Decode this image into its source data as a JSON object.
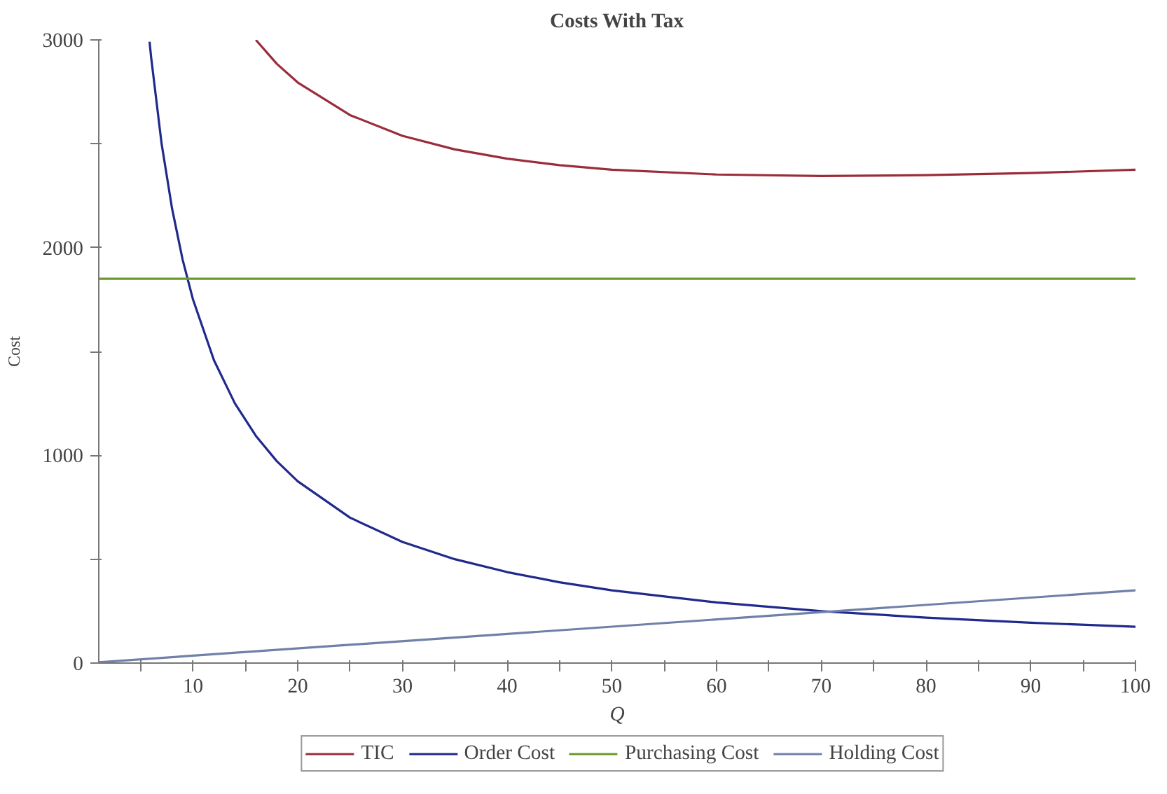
{
  "chart_data": {
    "type": "line",
    "title": "Costs With Tax",
    "xlabel": "Q",
    "ylabel": "Cost",
    "series": [
      {
        "name": "TIC",
        "color": "#9b2d3a",
        "x": [
          16,
          18,
          20,
          25,
          30,
          35,
          40,
          45,
          50,
          60,
          70,
          80,
          90,
          100
        ],
        "values": [
          3000,
          2885,
          2795,
          2638,
          2538,
          2473,
          2428,
          2397,
          2375,
          2352,
          2345,
          2349,
          2359,
          2375
        ]
      },
      {
        "name": "Order Cost",
        "color": "#1f2a8c",
        "x": [
          5.85,
          6,
          7,
          8,
          9,
          10,
          12,
          14,
          16,
          18,
          20,
          25,
          30,
          35,
          40,
          45,
          50,
          60,
          70,
          80,
          90,
          100
        ],
        "values": [
          2991,
          2917,
          2500,
          2188,
          1944,
          1750,
          1458,
          1250,
          1094,
          972,
          875,
          700,
          583,
          500,
          438,
          389,
          350,
          292,
          250,
          219,
          194,
          175
        ]
      },
      {
        "name": "Purchasing Cost",
        "color": "#6a9a2a",
        "x": [
          1,
          100
        ],
        "values": [
          1850,
          1850
        ]
      },
      {
        "name": "Holding Cost",
        "color": "#7080a8",
        "x": [
          1,
          100
        ],
        "values": [
          4,
          350
        ]
      }
    ],
    "xlim": [
      1,
      100
    ],
    "ylim": [
      0,
      3000
    ],
    "xticks": [
      {
        "value": 5,
        "label": null
      },
      10,
      {
        "value": 15,
        "label": null
      },
      20,
      {
        "value": 25,
        "label": null
      },
      30,
      {
        "value": 35,
        "label": null
      },
      40,
      {
        "value": 45,
        "label": null
      },
      50,
      {
        "value": 55,
        "label": null
      },
      60,
      {
        "value": 65,
        "label": null
      },
      70,
      {
        "value": 75,
        "label": null
      },
      80,
      {
        "value": 85,
        "label": null
      },
      90,
      {
        "value": 95,
        "label": null
      },
      100
    ],
    "yticks": [
      0,
      {
        "value": 500,
        "label": null
      },
      1000,
      {
        "value": 1500,
        "label": null
      },
      2000,
      {
        "value": 2500,
        "label": null
      },
      3000
    ],
    "grid": false,
    "legend": "bottom",
    "marker": "none",
    "line_style": "solid"
  }
}
